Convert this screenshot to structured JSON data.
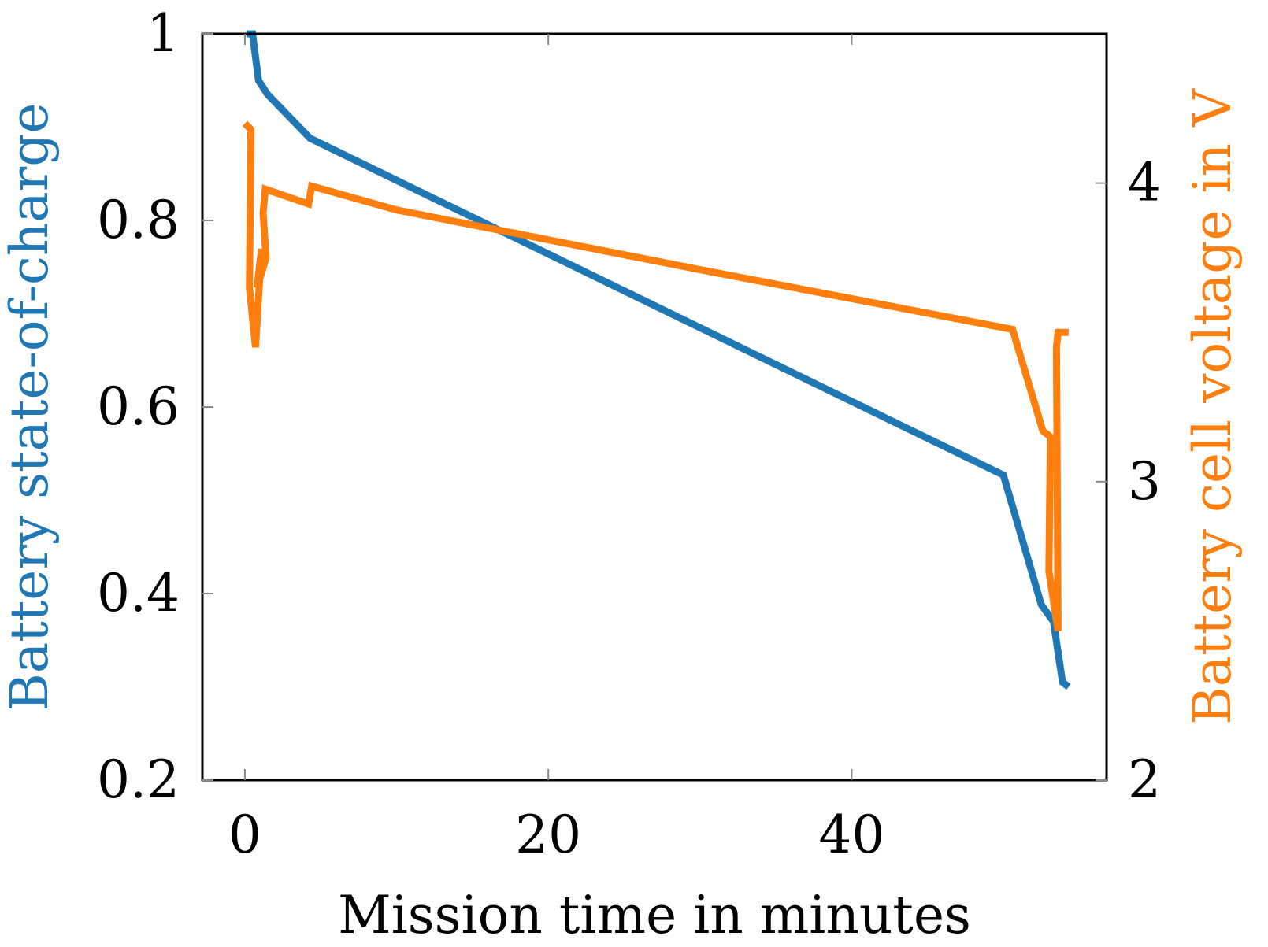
{
  "chart_data": {
    "type": "line",
    "xlabel": "Mission time in minutes",
    "ylabel_left": "Battery state-of-charge",
    "ylabel_right": "Battery cell voltage in V",
    "xlim": [
      -2.8,
      56.8
    ],
    "ylim_left": [
      0.2,
      1.0
    ],
    "ylim_right": [
      2.0,
      4.5
    ],
    "x_ticks": [
      0,
      20,
      40
    ],
    "x_tick_labels": [
      "0",
      "20",
      "40"
    ],
    "y_left_ticks": [
      0.2,
      0.4,
      0.6,
      0.8,
      1.0
    ],
    "y_left_tick_labels": [
      "0.2",
      "0.4",
      "0.6",
      "0.8",
      "1"
    ],
    "y_right_ticks": [
      2,
      3,
      4
    ],
    "y_right_tick_labels": [
      "2",
      "3",
      "4"
    ],
    "grid": false,
    "colors": {
      "soc": "#1f77b4",
      "voltage": "#ff7f0e",
      "axes": "#000000"
    },
    "series": [
      {
        "axis": "left",
        "color": "#1f77b4",
        "x": [
          0.1,
          0.5,
          0.9,
          1.5,
          4.3,
          50,
          52.5,
          53.3,
          53.9,
          54.3
        ],
        "y": [
          1.0,
          1.0,
          0.95,
          0.935,
          0.888,
          0.527,
          0.388,
          0.37,
          0.305,
          0.3
        ]
      },
      {
        "axis": "right",
        "color": "#ff7f0e",
        "x": [
          0.0,
          0.4,
          0.3,
          0.7,
          1.1,
          0.8,
          1.4,
          1.2,
          1.35,
          4.2,
          4.4,
          10,
          30,
          50.6,
          52.6,
          53.1,
          53.0,
          53.6,
          53.5,
          53.6,
          54.3
        ],
        "y": [
          4.2,
          4.18,
          3.65,
          3.45,
          3.78,
          3.65,
          3.75,
          3.9,
          3.98,
          3.93,
          3.99,
          3.91,
          3.71,
          3.51,
          3.17,
          3.15,
          2.7,
          2.5,
          3.45,
          3.5,
          3.5
        ]
      }
    ]
  }
}
